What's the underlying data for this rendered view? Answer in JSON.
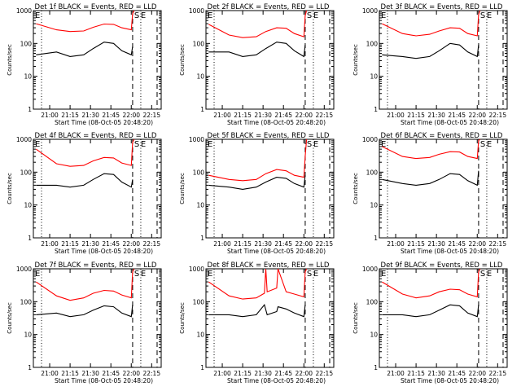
{
  "chart_data": [
    {
      "type": "line",
      "title": "Det 1f BLACK = Events, RED = LLD",
      "xlabel": "Start Time (08-Oct-05 20:48:20)",
      "ylabel": "Counts/sec",
      "y_scale": "log",
      "ylim": [
        1,
        1000
      ],
      "xlim": [
        "20:48",
        "22:22"
      ],
      "x_tick_labels": [
        "21:00",
        "21:15",
        "21:30",
        "21:45",
        "22:00",
        "22:15"
      ],
      "y_tick_labels": [
        "1000",
        "100",
        "10",
        "1"
      ],
      "markers": [
        "S",
        "E"
      ],
      "series": [
        {
          "name": "LLD",
          "color": "#ff0000",
          "x": [
            "20:50",
            "21:05",
            "21:15",
            "21:25",
            "21:32",
            "21:40",
            "21:47",
            "21:53",
            "22:00",
            "22:01",
            "22:02"
          ],
          "y": [
            400,
            260,
            230,
            240,
            310,
            390,
            380,
            300,
            260,
            800,
            1000
          ]
        },
        {
          "name": "Events",
          "color": "#000000",
          "x": [
            "20:50",
            "21:05",
            "21:15",
            "21:25",
            "21:32",
            "21:40",
            "21:47",
            "21:53",
            "22:00",
            "22:01"
          ],
          "y": [
            45,
            55,
            40,
            45,
            70,
            110,
            100,
            60,
            45,
            80
          ]
        }
      ]
    },
    {
      "type": "line",
      "title": "Det 2f BLACK = Events, RED = LLD",
      "xlabel": "Start Time (08-Oct-05 20:48:20)",
      "ylabel": "Counts/sec",
      "y_scale": "log",
      "ylim": [
        1,
        1000
      ],
      "xlim": [
        "20:48",
        "22:22"
      ],
      "x_tick_labels": [
        "21:00",
        "21:15",
        "21:30",
        "21:45",
        "22:00",
        "22:15"
      ],
      "y_tick_labels": [
        "1000",
        "100",
        "10",
        "1"
      ],
      "markers": [
        "S",
        "E"
      ],
      "series": [
        {
          "name": "LLD",
          "color": "#ff0000",
          "x": [
            "20:50",
            "21:05",
            "21:15",
            "21:25",
            "21:32",
            "21:40",
            "21:47",
            "21:53",
            "22:00",
            "22:01",
            "22:02"
          ],
          "y": [
            380,
            180,
            150,
            160,
            230,
            300,
            290,
            200,
            160,
            700,
            1000
          ]
        },
        {
          "name": "Events",
          "color": "#000000",
          "x": [
            "20:50",
            "21:05",
            "21:15",
            "21:25",
            "21:32",
            "21:40",
            "21:47",
            "21:53",
            "22:00",
            "22:01"
          ],
          "y": [
            55,
            55,
            40,
            45,
            70,
            110,
            100,
            60,
            40,
            90
          ]
        }
      ]
    },
    {
      "type": "line",
      "title": "Det 3f BLACK = Events, RED = LLD",
      "xlabel": "Start Time (08-Oct-05 20:48:20)",
      "ylabel": "Counts/sec",
      "y_scale": "log",
      "ylim": [
        1,
        1000
      ],
      "xlim": [
        "20:48",
        "22:22"
      ],
      "x_tick_labels": [
        "21:00",
        "21:15",
        "21:30",
        "21:45",
        "22:00",
        "22:15"
      ],
      "y_tick_labels": [
        "1000",
        "100",
        "10",
        "1"
      ],
      "markers": [
        "S",
        "E"
      ],
      "series": [
        {
          "name": "LLD",
          "color": "#ff0000",
          "x": [
            "20:50",
            "21:05",
            "21:15",
            "21:25",
            "21:32",
            "21:40",
            "21:47",
            "21:53",
            "22:00",
            "22:01",
            "22:02"
          ],
          "y": [
            400,
            200,
            170,
            190,
            240,
            300,
            290,
            200,
            170,
            750,
            1000
          ]
        },
        {
          "name": "Events",
          "color": "#000000",
          "x": [
            "20:50",
            "21:05",
            "21:15",
            "21:25",
            "21:32",
            "21:40",
            "21:47",
            "21:53",
            "22:00",
            "22:01"
          ],
          "y": [
            45,
            40,
            35,
            40,
            60,
            100,
            90,
            55,
            40,
            90
          ]
        }
      ]
    },
    {
      "type": "line",
      "title": "Det 4f BLACK = Events, RED = LLD",
      "xlabel": "Start Time (08-Oct-05 20:48:20)",
      "ylabel": "Counts/sec",
      "y_scale": "log",
      "ylim": [
        1,
        1000
      ],
      "xlim": [
        "20:48",
        "22:22"
      ],
      "x_tick_labels": [
        "21:00",
        "21:15",
        "21:30",
        "21:45",
        "22:00",
        "22:15"
      ],
      "y_tick_labels": [
        "1000",
        "100",
        "10",
        "1"
      ],
      "markers": [
        "S",
        "E"
      ],
      "series": [
        {
          "name": "LLD",
          "color": "#ff0000",
          "x": [
            "20:50",
            "21:05",
            "21:15",
            "21:25",
            "21:32",
            "21:40",
            "21:47",
            "21:53",
            "22:00",
            "22:01",
            "22:02"
          ],
          "y": [
            500,
            180,
            150,
            160,
            220,
            280,
            270,
            190,
            160,
            800,
            1000
          ]
        },
        {
          "name": "Events",
          "color": "#000000",
          "x": [
            "20:50",
            "21:05",
            "21:15",
            "21:25",
            "21:32",
            "21:40",
            "21:47",
            "21:53",
            "22:00",
            "22:01"
          ],
          "y": [
            40,
            40,
            35,
            40,
            60,
            90,
            85,
            50,
            35,
            60
          ]
        }
      ]
    },
    {
      "type": "line",
      "title": "Det 5f BLACK = Events, RED = LLD",
      "xlabel": "Start Time (08-Oct-05 20:48:20)",
      "ylabel": "Counts/sec",
      "y_scale": "log",
      "ylim": [
        1,
        1000
      ],
      "xlim": [
        "20:48",
        "22:22"
      ],
      "x_tick_labels": [
        "21:00",
        "21:15",
        "21:30",
        "21:45",
        "22:00",
        "22:15"
      ],
      "y_tick_labels": [
        "1000",
        "100",
        "10",
        "1"
      ],
      "markers": [
        "S",
        "E"
      ],
      "series": [
        {
          "name": "LLD",
          "color": "#ff0000",
          "x": [
            "20:50",
            "21:05",
            "21:15",
            "21:25",
            "21:32",
            "21:40",
            "21:47",
            "21:53",
            "22:00",
            "22:01",
            "22:02"
          ],
          "y": [
            80,
            60,
            55,
            60,
            90,
            120,
            110,
            80,
            70,
            300,
            1000
          ]
        },
        {
          "name": "Events",
          "color": "#000000",
          "x": [
            "20:50",
            "21:05",
            "21:15",
            "21:25",
            "21:32",
            "21:40",
            "21:47",
            "21:53",
            "22:00",
            "22:01"
          ],
          "y": [
            40,
            35,
            30,
            35,
            50,
            70,
            65,
            45,
            35,
            80
          ]
        }
      ]
    },
    {
      "type": "line",
      "title": "Det 6f BLACK = Events, RED = LLD",
      "xlabel": "Start Time (08-Oct-05 20:48:20)",
      "ylabel": "Counts/sec",
      "y_scale": "log",
      "ylim": [
        1,
        1000
      ],
      "xlim": [
        "20:48",
        "22:22"
      ],
      "x_tick_labels": [
        "21:00",
        "21:15",
        "21:30",
        "21:45",
        "22:00",
        "22:15"
      ],
      "y_tick_labels": [
        "1000",
        "100",
        "10",
        "1"
      ],
      "markers": [
        "S",
        "E"
      ],
      "series": [
        {
          "name": "LLD",
          "color": "#ff0000",
          "x": [
            "20:50",
            "21:05",
            "21:15",
            "21:25",
            "21:32",
            "21:40",
            "21:47",
            "21:53",
            "22:00",
            "22:01",
            "22:02"
          ],
          "y": [
            600,
            300,
            260,
            280,
            350,
            420,
            410,
            300,
            260,
            900,
            1000
          ]
        },
        {
          "name": "Events",
          "color": "#000000",
          "x": [
            "20:50",
            "21:05",
            "21:15",
            "21:25",
            "21:32",
            "21:40",
            "21:47",
            "21:53",
            "22:00",
            "22:01"
          ],
          "y": [
            60,
            45,
            40,
            45,
            60,
            90,
            85,
            55,
            40,
            110
          ]
        }
      ]
    },
    {
      "type": "line",
      "title": "Det 7f BLACK = Events, RED = LLD",
      "xlabel": "Start Time (08-Oct-05 20:48:20)",
      "ylabel": "Counts/sec",
      "y_scale": "log",
      "ylim": [
        1,
        1000
      ],
      "xlim": [
        "20:48",
        "22:22"
      ],
      "x_tick_labels": [
        "21:00",
        "21:15",
        "21:30",
        "21:45",
        "22:00",
        "22:15"
      ],
      "y_tick_labels": [
        "1000",
        "100",
        "10",
        "1"
      ],
      "markers": [
        "S",
        "E"
      ],
      "series": [
        {
          "name": "LLD",
          "color": "#ff0000",
          "x": [
            "20:50",
            "21:05",
            "21:15",
            "21:25",
            "21:32",
            "21:40",
            "21:47",
            "21:53",
            "22:00",
            "22:01",
            "22:02"
          ],
          "y": [
            400,
            150,
            110,
            130,
            180,
            220,
            210,
            160,
            130,
            800,
            1000
          ]
        },
        {
          "name": "Events",
          "color": "#000000",
          "x": [
            "20:50",
            "21:05",
            "21:15",
            "21:25",
            "21:32",
            "21:40",
            "21:47",
            "21:53",
            "22:00",
            "22:01"
          ],
          "y": [
            40,
            45,
            35,
            40,
            55,
            75,
            70,
            45,
            35,
            80
          ]
        }
      ]
    },
    {
      "type": "line",
      "title": "Det 8f BLACK = Events, RED = LLD",
      "xlabel": "Start Time (08-Oct-05 20:48:20)",
      "ylabel": "Counts/sec",
      "y_scale": "log",
      "ylim": [
        1,
        1000
      ],
      "xlim": [
        "20:48",
        "22:22"
      ],
      "x_tick_labels": [
        "21:00",
        "21:15",
        "21:30",
        "21:45",
        "22:00",
        "22:15"
      ],
      "y_tick_labels": [
        "1000",
        "100",
        "10",
        "1"
      ],
      "markers": [
        "S",
        "E"
      ],
      "series": [
        {
          "name": "LLD",
          "color": "#ff0000",
          "x": [
            "20:50",
            "21:05",
            "21:15",
            "21:25",
            "21:31",
            "21:32",
            "21:33",
            "21:40",
            "21:41",
            "21:47",
            "21:53",
            "22:00",
            "22:01",
            "22:02"
          ],
          "y": [
            400,
            150,
            120,
            130,
            180,
            1000,
            200,
            260,
            1000,
            200,
            170,
            140,
            800,
            1000
          ]
        },
        {
          "name": "Events",
          "color": "#000000",
          "x": [
            "20:50",
            "21:05",
            "21:15",
            "21:25",
            "21:31",
            "21:33",
            "21:40",
            "21:41",
            "21:47",
            "21:53",
            "22:00",
            "22:01"
          ],
          "y": [
            40,
            40,
            35,
            40,
            80,
            40,
            50,
            70,
            60,
            45,
            35,
            80
          ]
        }
      ]
    },
    {
      "type": "line",
      "title": "Det 9f BLACK = Events, RED = LLD",
      "xlabel": "Start Time (08-Oct-05 20:48:20)",
      "ylabel": "Counts/sec",
      "y_scale": "log",
      "ylim": [
        1,
        1000
      ],
      "xlim": [
        "20:48",
        "22:22"
      ],
      "x_tick_labels": [
        "21:00",
        "21:15",
        "21:30",
        "21:45",
        "22:00",
        "22:15"
      ],
      "y_tick_labels": [
        "1000",
        "100",
        "10",
        "1"
      ],
      "markers": [
        "S",
        "E"
      ],
      "series": [
        {
          "name": "LLD",
          "color": "#ff0000",
          "x": [
            "20:50",
            "21:05",
            "21:15",
            "21:25",
            "21:32",
            "21:40",
            "21:47",
            "21:53",
            "22:00",
            "22:01",
            "22:02"
          ],
          "y": [
            400,
            170,
            130,
            150,
            200,
            240,
            230,
            170,
            140,
            800,
            1000
          ]
        },
        {
          "name": "Events",
          "color": "#000000",
          "x": [
            "20:50",
            "21:05",
            "21:15",
            "21:25",
            "21:32",
            "21:40",
            "21:47",
            "21:53",
            "22:00",
            "22:01"
          ],
          "y": [
            40,
            40,
            35,
            40,
            55,
            80,
            75,
            45,
            35,
            80
          ]
        }
      ]
    }
  ]
}
